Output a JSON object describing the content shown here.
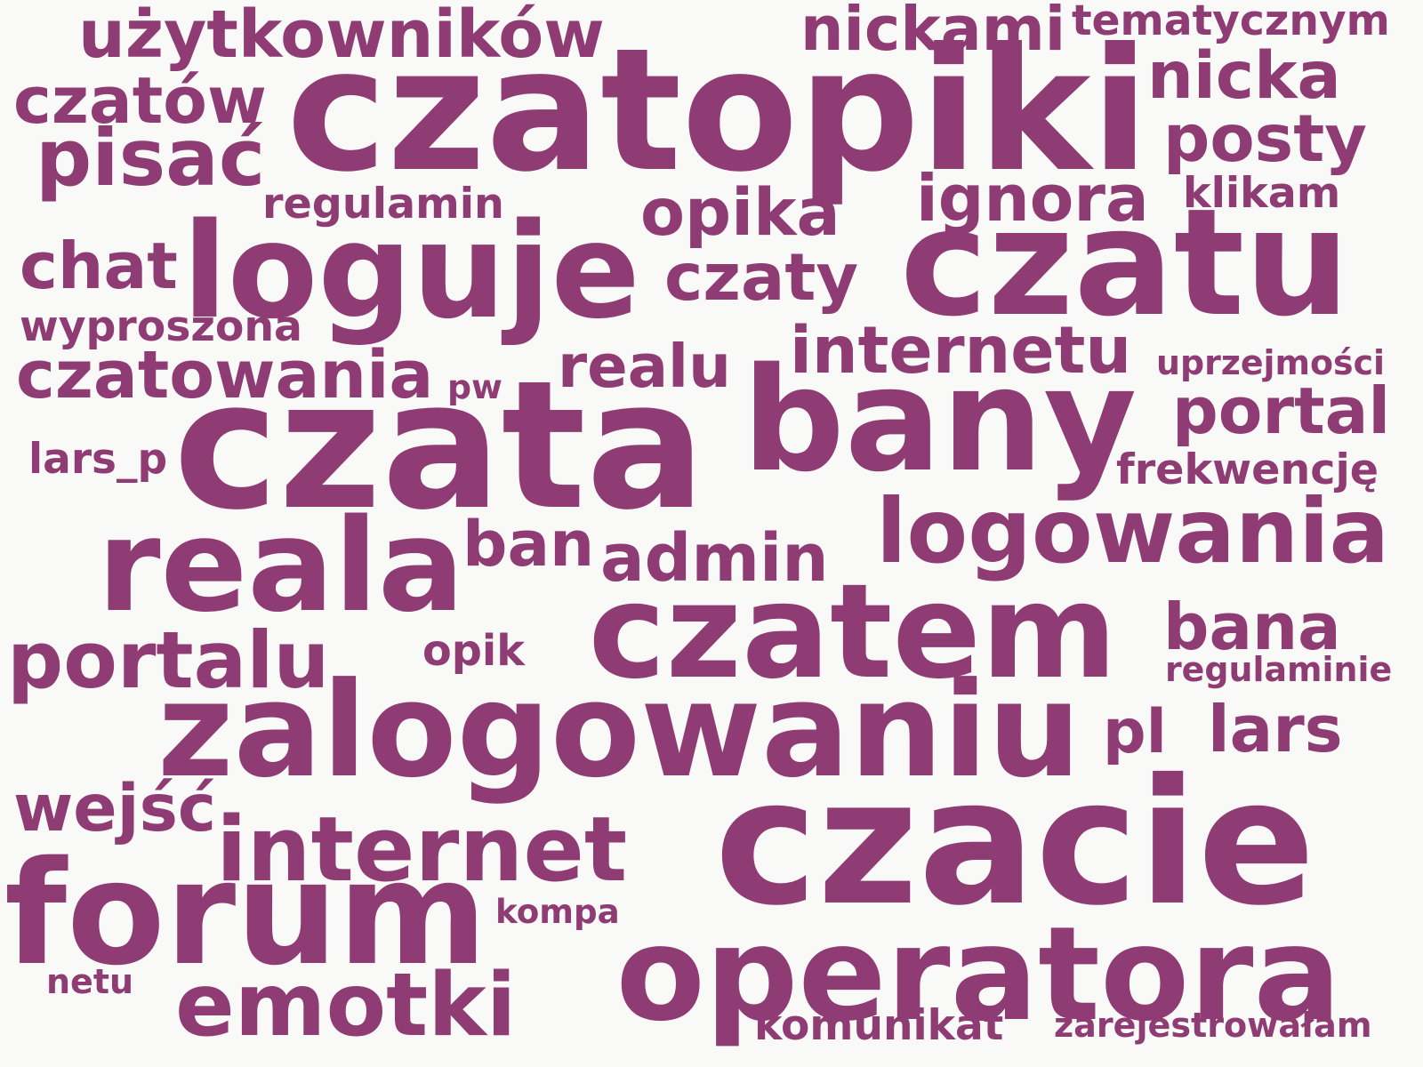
{
  "style": {
    "background": "#f9f9f7",
    "word_color": "#8f3b74"
  },
  "words": [
    "czatopiki",
    "czata",
    "zalogowaniu",
    "czacie",
    "czatem",
    "bany",
    "czatu",
    "loguje",
    "forum",
    "reala",
    "operatora",
    "logowania",
    "internet",
    "emotki",
    "internetu",
    "portalu",
    "użytkowników",
    "czatowania",
    "czatów",
    "pisać",
    "nickami",
    "nicka",
    "posty",
    "tematycznym",
    "ignora",
    "opika",
    "czaty",
    "chat",
    "realu",
    "portal",
    "ban",
    "admin",
    "bana",
    "lars",
    "pl",
    "wejść",
    "regulamin",
    "klikam",
    "wyproszona",
    "uprzejmości",
    "frekwencję",
    "lars_p",
    "pw",
    "opik",
    "regulaminie",
    "kompa",
    "netu",
    "komunikat",
    "zarejestrowałam"
  ]
}
